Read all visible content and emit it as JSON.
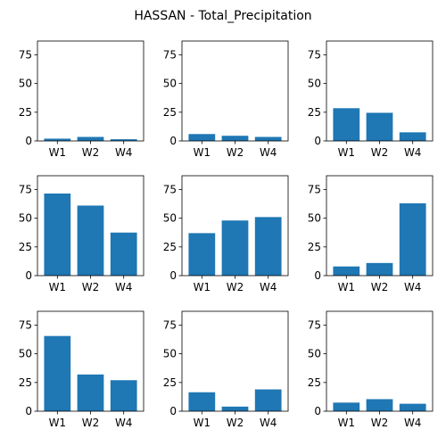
{
  "title": "HASSAN - Total_Precipitation",
  "bar_color": "#1f77b4",
  "chart_data": [
    {
      "type": "bar",
      "title": "",
      "xlabel": "",
      "ylabel": "",
      "categories": [
        "W1",
        "W2",
        "W4"
      ],
      "values": [
        2,
        3.5,
        1.5
      ],
      "ylim": [
        0,
        87
      ],
      "yticks": [
        0,
        25,
        50,
        75
      ],
      "grid": false
    },
    {
      "type": "bar",
      "title": "",
      "xlabel": "",
      "ylabel": "",
      "categories": [
        "W1",
        "W2",
        "W4"
      ],
      "values": [
        6,
        4.5,
        3.5
      ],
      "ylim": [
        0,
        87
      ],
      "yticks": [
        0,
        25,
        50,
        75
      ],
      "grid": false
    },
    {
      "type": "bar",
      "title": "",
      "xlabel": "",
      "ylabel": "",
      "categories": [
        "W1",
        "W2",
        "W4"
      ],
      "values": [
        28.5,
        24.5,
        7.5
      ],
      "ylim": [
        0,
        87
      ],
      "yticks": [
        0,
        25,
        50,
        75
      ],
      "grid": false
    },
    {
      "type": "bar",
      "title": "",
      "xlabel": "",
      "ylabel": "",
      "categories": [
        "W1",
        "W2",
        "W4"
      ],
      "values": [
        71.5,
        61,
        37.5
      ],
      "ylim": [
        0,
        87
      ],
      "yticks": [
        0,
        25,
        50,
        75
      ],
      "grid": false
    },
    {
      "type": "bar",
      "title": "",
      "xlabel": "",
      "ylabel": "",
      "categories": [
        "W1",
        "W2",
        "W4"
      ],
      "values": [
        37,
        48,
        51
      ],
      "ylim": [
        0,
        87
      ],
      "yticks": [
        0,
        25,
        50,
        75
      ],
      "grid": false
    },
    {
      "type": "bar",
      "title": "",
      "xlabel": "",
      "ylabel": "",
      "categories": [
        "W1",
        "W2",
        "W4"
      ],
      "values": [
        8,
        11,
        63
      ],
      "ylim": [
        0,
        87
      ],
      "yticks": [
        0,
        25,
        50,
        75
      ],
      "grid": false
    },
    {
      "type": "bar",
      "title": "",
      "xlabel": "",
      "ylabel": "",
      "categories": [
        "W1",
        "W2",
        "W4"
      ],
      "values": [
        65.5,
        32,
        27
      ],
      "ylim": [
        0,
        87
      ],
      "yticks": [
        0,
        25,
        50,
        75
      ],
      "grid": false
    },
    {
      "type": "bar",
      "title": "",
      "xlabel": "",
      "ylabel": "",
      "categories": [
        "W1",
        "W2",
        "W4"
      ],
      "values": [
        16.5,
        4,
        19
      ],
      "ylim": [
        0,
        87
      ],
      "yticks": [
        0,
        25,
        50,
        75
      ],
      "grid": false
    },
    {
      "type": "bar",
      "title": "",
      "xlabel": "",
      "ylabel": "",
      "categories": [
        "W1",
        "W2",
        "W4"
      ],
      "values": [
        7.5,
        10.5,
        6.5
      ],
      "ylim": [
        0,
        87
      ],
      "yticks": [
        0,
        25,
        50,
        75
      ],
      "grid": false
    }
  ]
}
